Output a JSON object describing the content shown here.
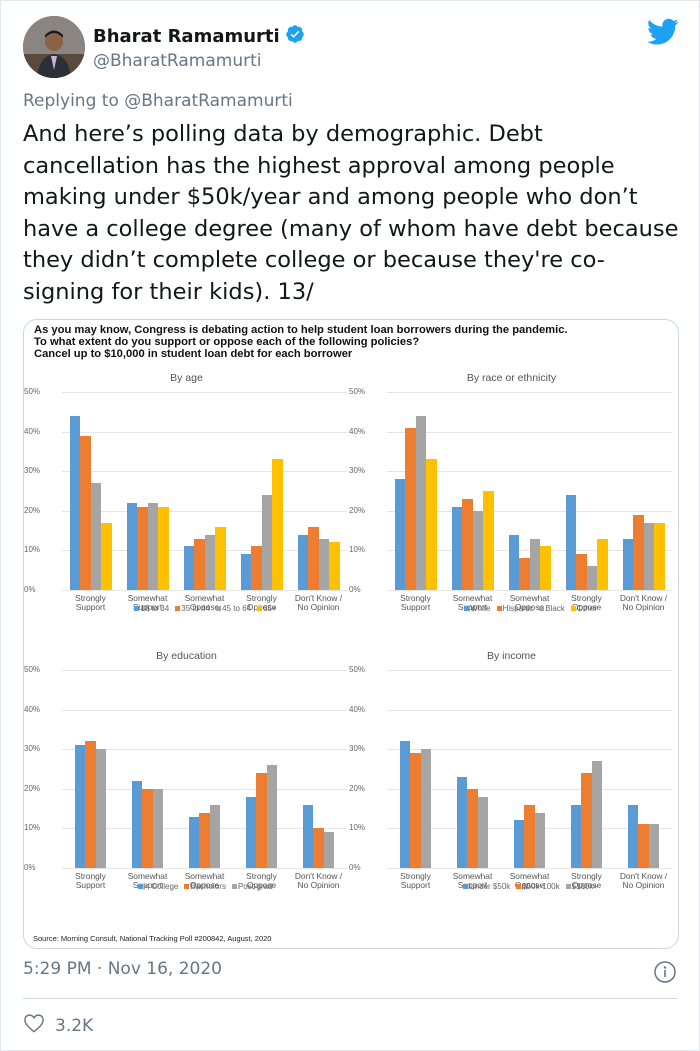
{
  "tweet": {
    "author_name": "Bharat Ramamurti",
    "author_handle": "@BharatRamamurti",
    "verified": true,
    "replying_to_prefix": "Replying to ",
    "replying_to_handle": "@BharatRamamurti",
    "text": "And here’s polling data by demographic. Debt cancellation has the highest approval among people making under $50k/year and among people who don’t have a college degree (many of whom have debt because they didn’t complete college or because they're co-signing for their kids). 13/",
    "timestamp": "5:29 PM · Nov 16, 2020",
    "likes": "3.2K",
    "icons": {
      "bird": "twitter-bird-icon",
      "verified": "verified-badge-icon",
      "info": "info-icon",
      "like": "heart-icon"
    },
    "brand_color": "#1da1f2"
  },
  "media": {
    "question_lines": [
      "As you may know, Congress is debating action to help student loan borrowers during the pandemic.",
      "To what extent do you support or oppose each of the following policies?",
      "Cancel up to $10,000 in student loan debt for each borrower"
    ],
    "source": "Source: Morning Consult, National Tracking Poll #200842, August, 2020"
  },
  "chart_data": [
    {
      "type": "bar",
      "title": "By age",
      "categories": [
        "Strongly Support",
        "Somewhat Support",
        "Somewhat Oppose",
        "Strongly Oppose",
        "Don't Know / No Opinion"
      ],
      "yticks": [
        "50%",
        "40%",
        "30%",
        "20%",
        "10%",
        "0%"
      ],
      "ylim": [
        0,
        50
      ],
      "series": [
        {
          "name": "18 to 34",
          "color": "#5b9bd5",
          "values": [
            44,
            22,
            11,
            9,
            14
          ]
        },
        {
          "name": "35 to 44",
          "color": "#ed7d31",
          "values": [
            39,
            21,
            13,
            11,
            16
          ]
        },
        {
          "name": "45 to 64",
          "color": "#a5a5a5",
          "values": [
            27,
            22,
            14,
            24,
            13
          ]
        },
        {
          "name": "65+",
          "color": "#ffc000",
          "values": [
            17,
            21,
            16,
            33,
            12
          ]
        }
      ],
      "legend_position": "bottom",
      "grid": true
    },
    {
      "type": "bar",
      "title": "By race or ethnicity",
      "categories": [
        "Strongly Support",
        "Somewhat Support",
        "Somewhat Oppose",
        "Strongly Oppose",
        "Don't Know / No Opinion"
      ],
      "yticks": [
        "50%",
        "40%",
        "30%",
        "20%",
        "10%",
        "0%"
      ],
      "ylim": [
        0,
        50
      ],
      "series": [
        {
          "name": "White",
          "color": "#5b9bd5",
          "values": [
            28,
            21,
            14,
            24,
            13
          ]
        },
        {
          "name": "Hispanic",
          "color": "#ed7d31",
          "values": [
            41,
            23,
            8,
            9,
            19
          ]
        },
        {
          "name": "Black",
          "color": "#a5a5a5",
          "values": [
            44,
            20,
            13,
            6,
            17
          ]
        },
        {
          "name": "Other",
          "color": "#ffc000",
          "values": [
            33,
            25,
            11,
            13,
            17
          ]
        }
      ],
      "legend_position": "bottom",
      "grid": true
    },
    {
      "type": "bar",
      "title": "By education",
      "categories": [
        "Strongly Support",
        "Somewhat Support",
        "Somewhat Oppose",
        "Strongly Oppose",
        "Don't Know / No Opinion"
      ],
      "yticks": [
        "50%",
        "40%",
        "30%",
        "20%",
        "10%",
        "0%"
      ],
      "ylim": [
        0,
        50
      ],
      "series": [
        {
          "name": "< College",
          "color": "#5b9bd5",
          "values": [
            31,
            22,
            13,
            18,
            16
          ]
        },
        {
          "name": "Bachelors",
          "color": "#ed7d31",
          "values": [
            32,
            20,
            14,
            24,
            10
          ]
        },
        {
          "name": "Post-grad",
          "color": "#a5a5a5",
          "values": [
            30,
            20,
            16,
            26,
            9
          ]
        }
      ],
      "legend_position": "bottom",
      "grid": true
    },
    {
      "type": "bar",
      "title": "By income",
      "categories": [
        "Strongly Support",
        "Somewhat Support",
        "Somewhat Oppose",
        "Strongly Oppose",
        "Don't Know / No Opinion"
      ],
      "yticks": [
        "50%",
        "40%",
        "30%",
        "20%",
        "10%",
        "0%"
      ],
      "ylim": [
        0,
        50
      ],
      "series": [
        {
          "name": "Under $50k",
          "color": "#5b9bd5",
          "values": [
            32,
            23,
            12,
            16,
            16
          ]
        },
        {
          "name": "$50k-100k",
          "color": "#ed7d31",
          "values": [
            29,
            20,
            16,
            24,
            11
          ]
        },
        {
          "name": "$100k+",
          "color": "#a5a5a5",
          "values": [
            30,
            18,
            14,
            27,
            11
          ]
        }
      ],
      "legend_position": "bottom",
      "grid": true
    }
  ]
}
